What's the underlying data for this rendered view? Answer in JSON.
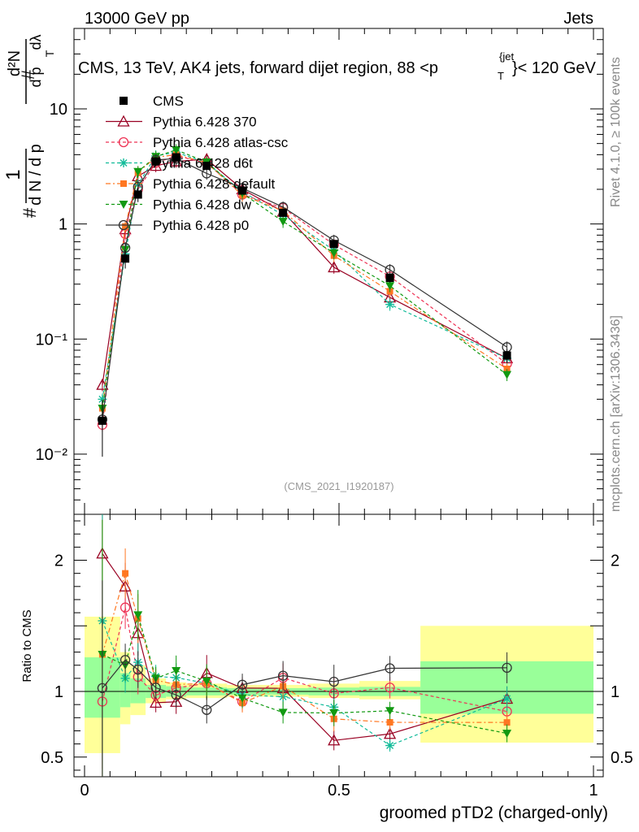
{
  "header": {
    "left": "13000 GeV pp",
    "right": "Jets",
    "side_top": "Rivet 4.1.0, ≥ 100k events",
    "side_bottom": "mcplots.cern.ch [arXiv:1306.3436]"
  },
  "chart_data": {
    "type": "line",
    "title_main": "CMS, 13 TeV, AK4 jets, forward dijet region, 88 <p",
    "title_sub": "T",
    "title_sup": "{jet",
    "title_tail": "}< 120 GeV",
    "analysis_id": "(CMS_2021_I1920187)",
    "xlabel": "groomed pTD2 (charged-only)",
    "ylabel_top": "1/N dN/dp_T dλ (log scale)",
    "ylabel_ratio": "Ratio to CMS",
    "xlim": [
      0,
      1
    ],
    "ylim_log": [
      0.003,
      50
    ],
    "ratio_ylim": [
      0.35,
      2.35
    ],
    "x_ticks": [
      "0",
      "0.5",
      "1"
    ],
    "y_ticks_top": [
      {
        "v": 10,
        "label": "10"
      },
      {
        "v": 1,
        "label": "1"
      },
      {
        "v": 0.1,
        "label": "10⁻¹"
      },
      {
        "v": 0.01,
        "label": "10⁻²"
      }
    ],
    "ratio_ticks": [
      {
        "v": 0.5,
        "label": "0.5"
      },
      {
        "v": 1,
        "label": "1"
      },
      {
        "v": 2,
        "label": "2"
      }
    ],
    "x": [
      0.035,
      0.08,
      0.105,
      0.14,
      0.18,
      0.24,
      0.31,
      0.39,
      0.49,
      0.6,
      0.83
    ],
    "x_edges": [
      0,
      0.07,
      0.09,
      0.12,
      0.16,
      0.2,
      0.28,
      0.34,
      0.44,
      0.54,
      0.66,
      1.0
    ],
    "cms": {
      "name": "CMS",
      "values": [
        0.0195,
        0.5,
        1.8,
        3.5,
        3.8,
        3.2,
        1.95,
        1.25,
        0.67,
        0.34,
        0.072
      ],
      "errors": [
        0.01,
        0.09,
        0.25,
        0.3,
        0.3,
        0.25,
        0.15,
        0.1,
        0.05,
        0.03,
        0.01
      ]
    },
    "band_yellow": [
      [
        0.53,
        1.57
      ],
      [
        0.75,
        1.3
      ],
      [
        0.82,
        1.2
      ],
      [
        0.91,
        1.1
      ],
      [
        0.94,
        1.07
      ],
      [
        0.95,
        1.06
      ],
      [
        0.96,
        1.05
      ],
      [
        0.96,
        1.05
      ],
      [
        0.95,
        1.06
      ],
      [
        0.94,
        1.08
      ],
      [
        0.61,
        1.5
      ]
    ],
    "band_green": [
      [
        0.8,
        1.26
      ],
      [
        0.88,
        1.14
      ],
      [
        0.91,
        1.1
      ],
      [
        0.95,
        1.05
      ],
      [
        0.96,
        1.04
      ],
      [
        0.97,
        1.03
      ],
      [
        0.975,
        1.025
      ],
      [
        0.975,
        1.025
      ],
      [
        0.97,
        1.03
      ],
      [
        0.965,
        1.035
      ],
      [
        0.83,
        1.23
      ]
    ],
    "series": [
      {
        "name": "Pythia 6.428 370",
        "color": "#990022",
        "dash": "",
        "marker": "triangle-open",
        "values": [
          0.04,
          0.9,
          2.6,
          3.2,
          3.5,
          3.65,
          2.0,
          1.28,
          0.42,
          0.23,
          0.068
        ],
        "err": 0.12
      },
      {
        "name": "Pythia 6.428 atlas-csc",
        "color": "#ee3355",
        "dash": "4,3",
        "marker": "circle-open",
        "values": [
          0.018,
          0.82,
          2.0,
          3.4,
          3.9,
          3.4,
          1.8,
          1.38,
          0.66,
          0.35,
          0.061
        ],
        "err": 0.12
      },
      {
        "name": "Pythia 6.428 d6t",
        "color": "#11bb99",
        "dash": "4,3",
        "marker": "star",
        "values": [
          0.03,
          0.55,
          2.2,
          3.9,
          4.2,
          3.4,
          1.9,
          1.2,
          0.59,
          0.2,
          0.068
        ],
        "err": 0.12
      },
      {
        "name": "Pythia 6.428 default",
        "color": "#ff7722",
        "dash": "6,3,2,3",
        "marker": "square",
        "values": [
          0.025,
          0.95,
          2.8,
          3.8,
          4.0,
          3.4,
          1.78,
          1.3,
          0.53,
          0.26,
          0.055
        ],
        "err": 0.12
      },
      {
        "name": "Pythia 6.428 dw",
        "color": "#119911",
        "dash": "4,3",
        "marker": "triangle-down",
        "values": [
          0.025,
          0.6,
          2.85,
          3.85,
          4.4,
          3.45,
          1.85,
          1.05,
          0.56,
          0.29,
          0.049
        ],
        "err": 0.12
      },
      {
        "name": "Pythia 6.428 p0",
        "color": "#333333",
        "dash": "",
        "marker": "circle-open",
        "values": [
          0.02,
          0.62,
          2.1,
          3.6,
          3.7,
          2.75,
          2.05,
          1.4,
          0.72,
          0.4,
          0.085
        ],
        "err": 0.12
      }
    ]
  }
}
